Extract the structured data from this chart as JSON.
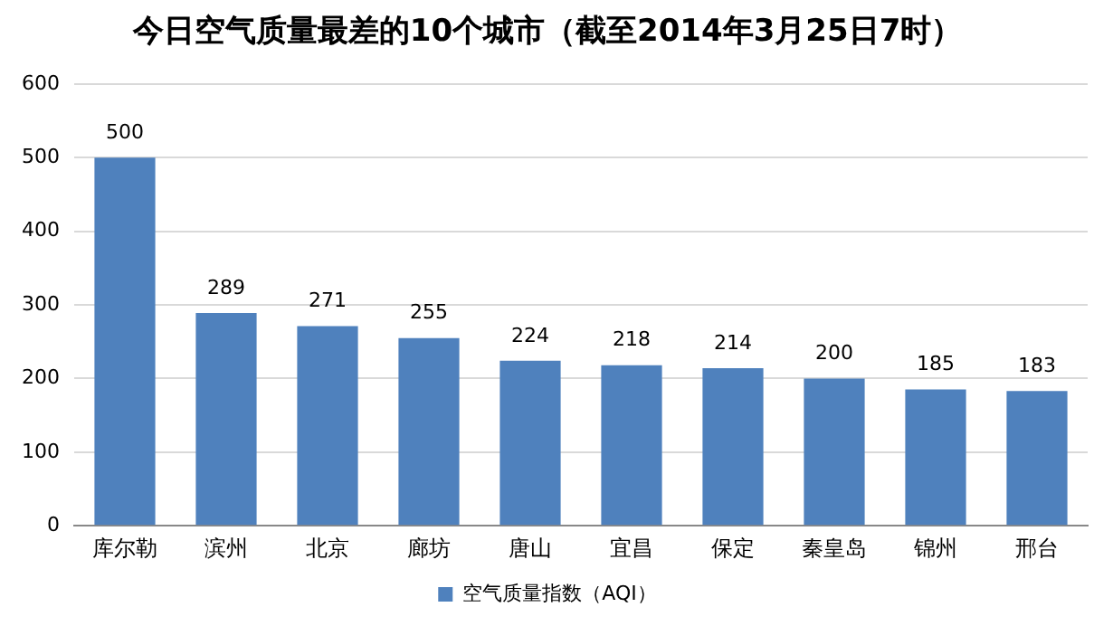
{
  "chart_data": {
    "type": "bar",
    "title": "今日空气质量最差的10个城市（截至2014年3月25日7时）",
    "categories": [
      "库尔勒",
      "滨州",
      "北京",
      "廊坊",
      "唐山",
      "宜昌",
      "保定",
      "秦皇岛",
      "锦州",
      "邢台"
    ],
    "series": [
      {
        "name": "空气质量指数（AQI）",
        "color": "#4f81bd",
        "values": [
          500,
          289,
          271,
          255,
          224,
          218,
          214,
          200,
          185,
          183
        ]
      }
    ],
    "ylim": [
      0,
      600
    ],
    "yticks": [
      0,
      100,
      200,
      300,
      400,
      500,
      600
    ],
    "grid": "y",
    "legend": "bottom",
    "data_labels": true
  }
}
